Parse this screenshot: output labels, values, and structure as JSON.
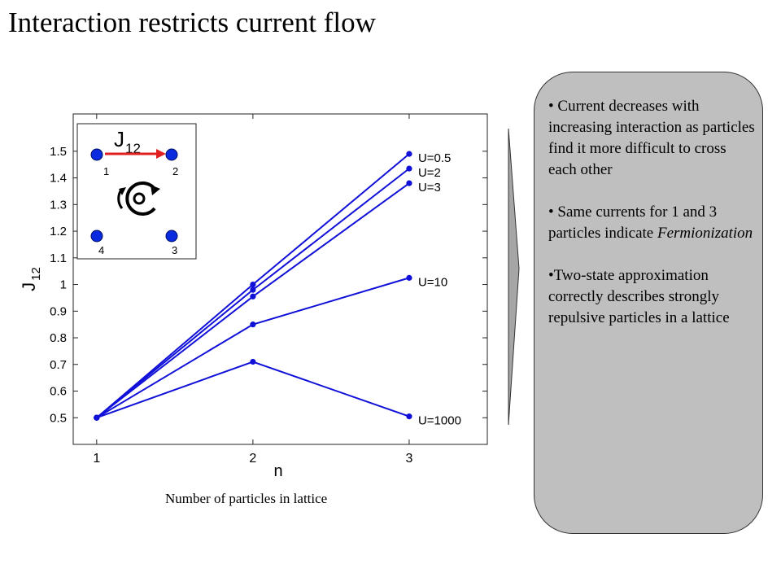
{
  "title": "Interaction restricts current flow",
  "caption": "Number of particles in lattice",
  "panel": {
    "bullet1": "• Current decreases with increasing interaction as particles find it more difficult to cross each other",
    "bullet2_main": "• Same currents for 1 and 3 particles indicate ",
    "bullet2_em": "Fermionization",
    "bullet3": "•Two-state approximation correctly describes strongly repulsive particles in a lattice"
  },
  "inset": {
    "label_main": "J",
    "label_sub": "12",
    "sites": [
      "1",
      "2",
      "4",
      "3"
    ]
  },
  "colors": {
    "series": "#1010d8",
    "arrow": "#e02020",
    "site": "#0a2ae0",
    "panel_bg": "#bfbfbf"
  },
  "chart_data": {
    "type": "line",
    "xlabel": "n",
    "ylabel_main": "J",
    "ylabel_sub": "12",
    "xlim": [
      0.85,
      3.5
    ],
    "ylim": [
      0.4,
      1.64
    ],
    "xticks": [
      1,
      2,
      3
    ],
    "yticks": [
      0.5,
      0.6,
      0.7,
      0.8,
      0.9,
      1,
      1.1,
      1.2,
      1.3,
      1.4,
      1.5
    ],
    "ytick_labels": [
      "0.5",
      "0.6",
      "0.7",
      "0.8",
      "0.9",
      "1",
      "1.1",
      "1.2",
      "1.3",
      "1.4",
      "1.5"
    ],
    "x": [
      1,
      2,
      3
    ],
    "series": [
      {
        "name": "U=0.5",
        "values": [
          0.5,
          1.0,
          1.49
        ]
      },
      {
        "name": "U=2",
        "values": [
          0.5,
          0.98,
          1.435
        ]
      },
      {
        "name": "U=3",
        "values": [
          0.5,
          0.955,
          1.38
        ]
      },
      {
        "name": "U=10",
        "values": [
          0.5,
          0.85,
          1.025
        ]
      },
      {
        "name": "U=1000",
        "values": [
          0.5,
          0.71,
          0.505
        ]
      }
    ],
    "grid": false
  }
}
